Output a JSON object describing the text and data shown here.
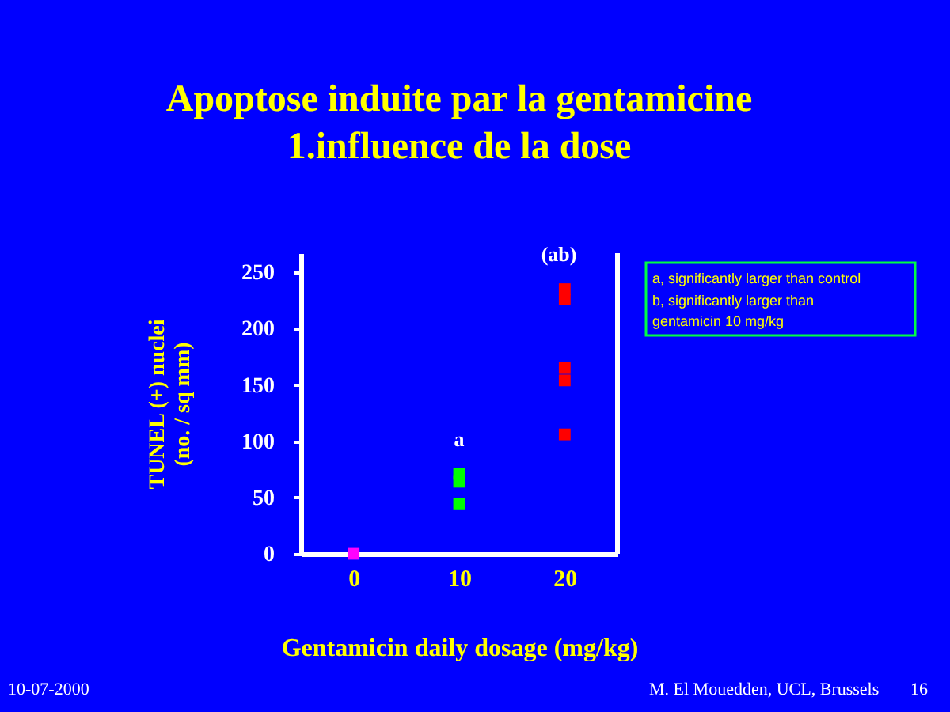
{
  "chart_data": {
    "type": "scatter",
    "title": "Apoptose induite par la gentamicine",
    "subtitle": "1.influence de la dose",
    "xlabel": "Gentamicin daily dosage (mg/kg)",
    "ylabel": "TUNEL (+) nuclei\n(no. /  sq mm)",
    "categories": [
      "0",
      "10",
      "20"
    ],
    "series": [
      {
        "color": "#ff00ff",
        "x": [
          "0"
        ],
        "values": [
          0
        ]
      },
      {
        "color": "#00ff00",
        "x": [
          "10",
          "10",
          "10"
        ],
        "values": [
          71,
          64,
          44
        ]
      },
      {
        "color": "#ff0000",
        "x": [
          "20",
          "20",
          "20",
          "20",
          "20"
        ],
        "values": [
          235,
          226,
          165,
          154,
          106
        ]
      }
    ],
    "ylim": [
      0,
      267
    ],
    "yticks": [
      0,
      50,
      100,
      150,
      200,
      250
    ],
    "grid": false,
    "marker": "square",
    "annotations": [
      "a",
      "(ab)",
      "a, significantly larger than control",
      "b, significantly larger than\n   gentamicin 10 mg/kg",
      "10-07-2000",
      "M. El Mouedden, UCL, Brussels",
      "16"
    ]
  }
}
